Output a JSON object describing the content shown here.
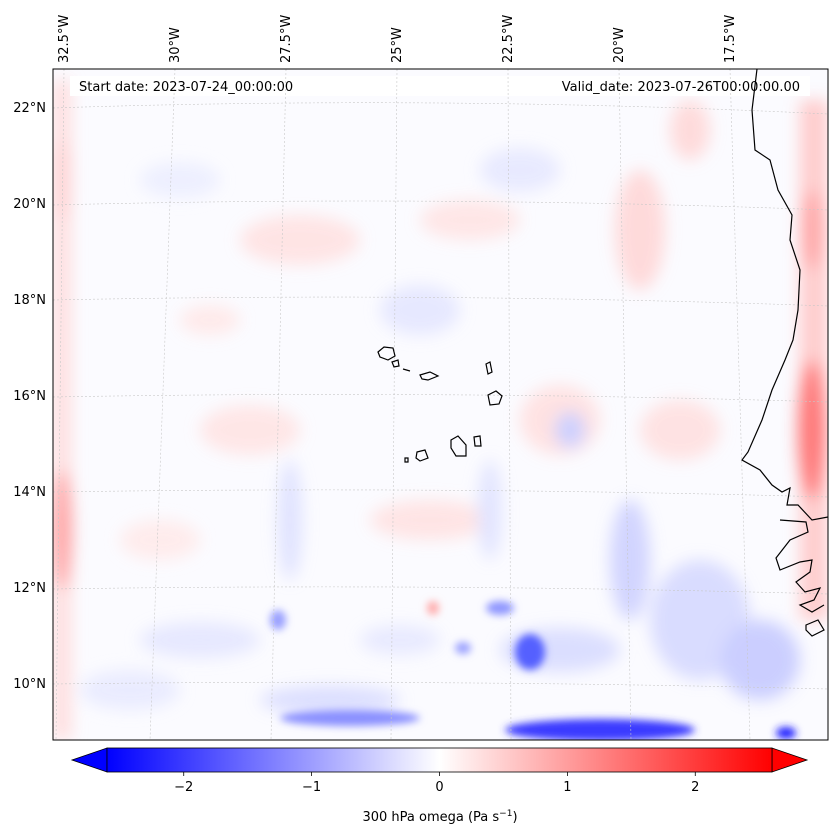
{
  "header": {
    "start_date": "Start date: 2023-07-24_00:00:00",
    "valid_date": "Valid_date: 2023-07-26T00:00:00.00"
  },
  "map": {
    "lon_labels": [
      "32.5°W",
      "30°W",
      "27.5°W",
      "25°W",
      "22.5°W",
      "20°W",
      "17.5°W"
    ],
    "lat_labels": [
      "22°N",
      "20°N",
      "18°N",
      "16°N",
      "14°N",
      "12°N",
      "10°N"
    ],
    "colors": {
      "negative": "#0000ff",
      "positive": "#ff0000",
      "neutral": "#ffffff",
      "coastline": "#000000"
    }
  },
  "colorbar": {
    "ticks": [
      "−2",
      "−1",
      "0",
      "1",
      "2"
    ],
    "tick_values": [
      -2,
      -1,
      0,
      1,
      2
    ],
    "range": [
      -2.6,
      2.6
    ],
    "label": "300 hPa omega (Pa s",
    "label_exp": "−1",
    "label_end": ")"
  }
}
